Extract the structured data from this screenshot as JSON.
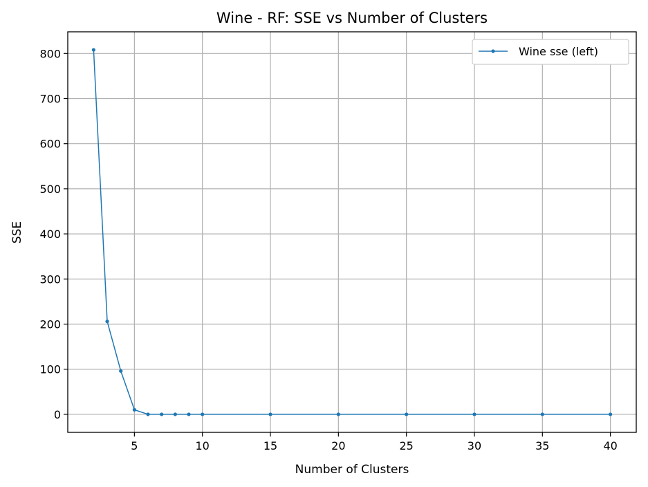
{
  "chart_data": {
    "type": "line",
    "title": "Wine - RF: SSE vs Number of Clusters",
    "xlabel": "Number of Clusters",
    "ylabel": "SSE",
    "xlim": [
      0.1,
      41.9
    ],
    "ylim": [
      -40,
      848
    ],
    "xticks": [
      5,
      10,
      15,
      20,
      25,
      30,
      35,
      40
    ],
    "yticks": [
      0,
      100,
      200,
      300,
      400,
      500,
      600,
      700,
      800
    ],
    "grid": true,
    "legend_position": "top-right",
    "series": [
      {
        "name": "Wine sse (left)",
        "color": "#1f77b4",
        "x": [
          2,
          3,
          4,
          5,
          6,
          7,
          8,
          9,
          10,
          15,
          20,
          25,
          30,
          35,
          40
        ],
        "y": [
          808,
          206,
          96,
          10,
          0,
          0,
          0,
          0,
          0,
          0,
          0,
          0,
          0,
          0,
          0
        ]
      }
    ]
  }
}
